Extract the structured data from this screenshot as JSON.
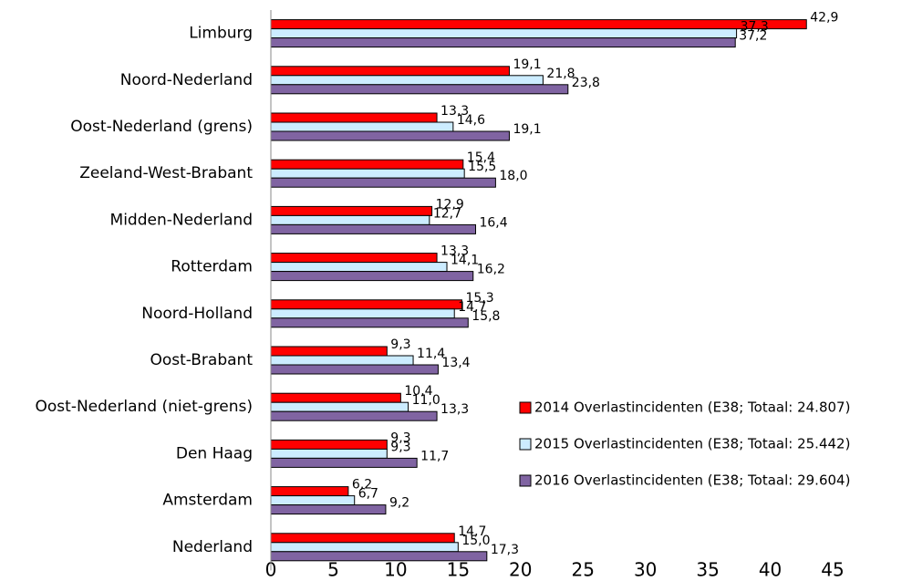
{
  "chart_data": {
    "type": "hbar",
    "categories": [
      "Limburg",
      "Noord-Nederland",
      "Oost-Nederland (grens)",
      "Zeeland-West-Brabant",
      "Midden-Nederland",
      "Rotterdam",
      "Noord-Holland",
      "Oost-Brabant",
      "Oost-Nederland (niet-grens)",
      "Den Haag",
      "Amsterdam",
      "Nederland"
    ],
    "series": [
      {
        "name": "2014 Overlastincidenten (E38; Totaal: 24.807)",
        "color": "#ff0000",
        "values": [
          42.9,
          19.1,
          13.3,
          15.4,
          12.9,
          13.3,
          15.3,
          9.3,
          10.4,
          9.3,
          6.2,
          14.7
        ],
        "value_labels": [
          "42,9",
          "19,1",
          "13,3",
          "15,4",
          "12,9",
          "13,3",
          "15,3",
          "9,3",
          "10,4",
          "9,3",
          "6,2",
          "14,7"
        ]
      },
      {
        "name": "2015 Overlastincidenten (E38; Totaal: 25.442)",
        "color": "#ccecff",
        "values": [
          37.3,
          21.8,
          14.6,
          15.5,
          12.7,
          14.1,
          14.7,
          11.4,
          11.0,
          9.3,
          6.7,
          15.0
        ],
        "value_labels": [
          "37,3",
          "21,8",
          "14,6",
          "15,5",
          "12,7",
          "14,1",
          "14,7",
          "11,4",
          "11,0",
          "9,3",
          "6,7",
          "15,0"
        ]
      },
      {
        "name": "2016 Overlastincidenten (E38; Totaal: 29.604)",
        "color": "#8064a2",
        "values": [
          37.2,
          23.8,
          19.1,
          18.0,
          16.4,
          16.2,
          15.8,
          13.4,
          13.3,
          11.7,
          9.2,
          17.3
        ],
        "value_labels": [
          "37,2",
          "23,8",
          "19,1",
          "18,0",
          "16,4",
          "16,2",
          "15,8",
          "13,4",
          "13,3",
          "11,7",
          "9,2",
          "17,3"
        ]
      }
    ],
    "xlim": [
      0,
      45
    ],
    "xticks": [
      0,
      5,
      10,
      15,
      20,
      25,
      30,
      35,
      40,
      45
    ],
    "legend": "lower right"
  }
}
